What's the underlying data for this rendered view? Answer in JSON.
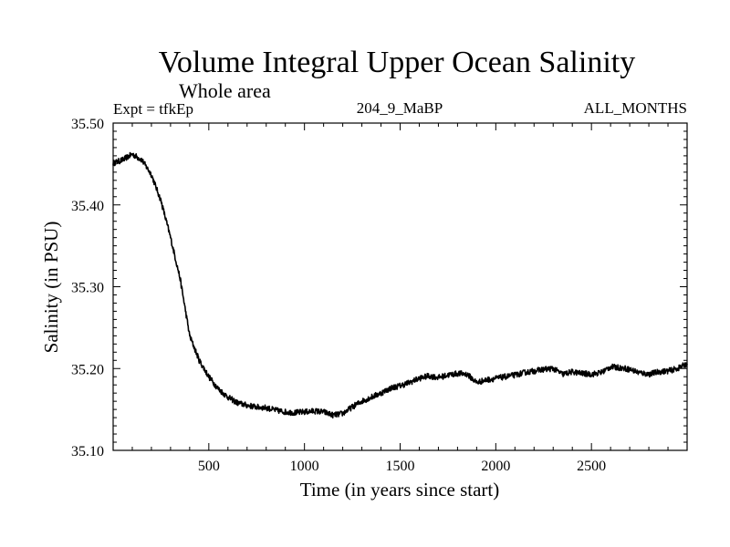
{
  "chart_data": {
    "type": "line",
    "title": "Volume Integral Upper Ocean Salinity",
    "subtitle": "Whole area",
    "meta": {
      "left": "Expt = tfkEp",
      "center": "204_9_MaBP",
      "right": "ALL_MONTHS"
    },
    "xlabel": "Time (in years since start)",
    "ylabel": "Salinity (in PSU)",
    "xlim": [
      0,
      3000
    ],
    "ylim": [
      35.1,
      35.5
    ],
    "xticks": [
      500,
      1000,
      1500,
      2000,
      2500
    ],
    "xtick_labels": [
      "500",
      "1000",
      "1500",
      "2000",
      "2500"
    ],
    "yticks": [
      35.1,
      35.2,
      35.3,
      35.4,
      35.5
    ],
    "ytick_labels": [
      "35.10",
      "35.20",
      "35.30",
      "35.40",
      "35.50"
    ],
    "grid": false,
    "series": [
      {
        "color": "#000000",
        "x": [
          0,
          50,
          100,
          150,
          200,
          250,
          300,
          350,
          400,
          450,
          500,
          550,
          600,
          650,
          700,
          750,
          800,
          850,
          900,
          950,
          1000,
          1050,
          1100,
          1150,
          1200,
          1250,
          1300,
          1350,
          1400,
          1450,
          1500,
          1550,
          1600,
          1650,
          1700,
          1750,
          1800,
          1850,
          1900,
          1950,
          2000,
          2050,
          2100,
          2150,
          2200,
          2250,
          2300,
          2350,
          2400,
          2450,
          2500,
          2550,
          2600,
          2650,
          2700,
          2750,
          2800,
          2850,
          2900,
          2950,
          3000
        ],
        "y": [
          35.451,
          35.455,
          35.462,
          35.455,
          35.437,
          35.405,
          35.36,
          35.31,
          35.24,
          35.21,
          35.19,
          35.175,
          35.165,
          35.158,
          35.155,
          35.153,
          35.152,
          35.149,
          35.147,
          35.146,
          35.147,
          35.148,
          35.147,
          35.143,
          35.145,
          35.153,
          35.16,
          35.165,
          35.17,
          35.176,
          35.179,
          35.183,
          35.188,
          35.191,
          35.189,
          35.192,
          35.194,
          35.193,
          35.183,
          35.186,
          35.188,
          35.19,
          35.192,
          35.195,
          35.197,
          35.199,
          35.2,
          35.193,
          35.196,
          35.194,
          35.193,
          35.195,
          35.202,
          35.201,
          35.199,
          35.195,
          35.193,
          35.196,
          35.197,
          35.2,
          35.206
        ]
      }
    ]
  }
}
